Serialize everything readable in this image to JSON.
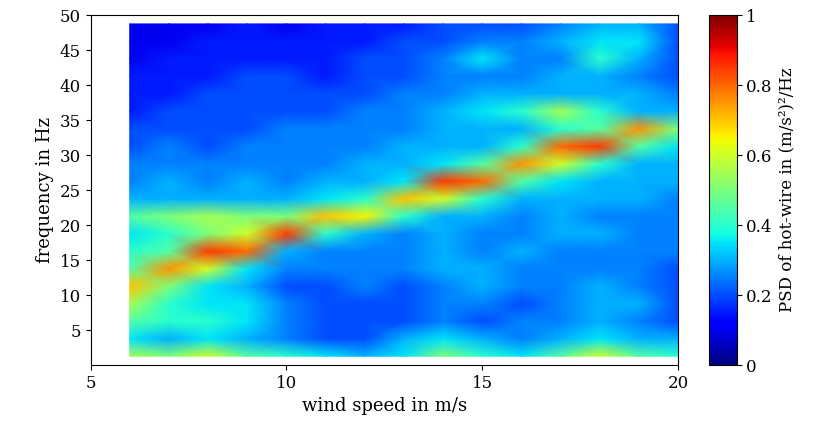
{
  "chart_data": {
    "type": "heatmap",
    "x_label": "wind speed in m/s",
    "y_label": "frequency in Hz",
    "colorbar_label": "PSD of hot-wire in (m/s²)²/Hz",
    "xlim": [
      5,
      20
    ],
    "xticks": [
      5,
      10,
      15,
      20
    ],
    "ylim": [
      0,
      50
    ],
    "yticks": [
      5,
      10,
      15,
      20,
      25,
      30,
      35,
      40,
      45,
      50
    ],
    "x": [
      6,
      7,
      8,
      9,
      10,
      11,
      12,
      13,
      14,
      15,
      16,
      17,
      18,
      19,
      20
    ],
    "y": [
      1.25,
      3.75,
      6.25,
      8.75,
      11.25,
      13.75,
      16.25,
      18.75,
      21.25,
      23.75,
      26.25,
      28.75,
      31.25,
      33.75,
      36.25,
      38.75,
      41.25,
      43.75,
      46.25,
      48.75
    ],
    "cells": [
      [
        0.55,
        0.5,
        0.6,
        0.45,
        0.4,
        0.35,
        0.3,
        0.35,
        0.5,
        0.4,
        0.35,
        0.45,
        0.6,
        0.45,
        0.4
      ],
      [
        0.35,
        0.3,
        0.35,
        0.3,
        0.25,
        0.2,
        0.2,
        0.3,
        0.35,
        0.3,
        0.25,
        0.3,
        0.35,
        0.3,
        0.3
      ],
      [
        0.45,
        0.4,
        0.4,
        0.35,
        0.25,
        0.2,
        0.2,
        0.2,
        0.25,
        0.2,
        0.25,
        0.25,
        0.3,
        0.25,
        0.2
      ],
      [
        0.55,
        0.4,
        0.35,
        0.35,
        0.25,
        0.2,
        0.2,
        0.2,
        0.25,
        0.25,
        0.2,
        0.25,
        0.3,
        0.3,
        0.2
      ],
      [
        0.7,
        0.5,
        0.35,
        0.3,
        0.2,
        0.2,
        0.25,
        0.2,
        0.25,
        0.3,
        0.25,
        0.25,
        0.3,
        0.25,
        0.2
      ],
      [
        0.45,
        0.75,
        0.6,
        0.35,
        0.25,
        0.25,
        0.25,
        0.25,
        0.3,
        0.3,
        0.25,
        0.25,
        0.25,
        0.25,
        0.2
      ],
      [
        0.4,
        0.45,
        0.85,
        0.8,
        0.3,
        0.25,
        0.25,
        0.25,
        0.3,
        0.25,
        0.3,
        0.25,
        0.25,
        0.25,
        0.25
      ],
      [
        0.35,
        0.4,
        0.5,
        0.6,
        0.85,
        0.4,
        0.3,
        0.25,
        0.3,
        0.25,
        0.25,
        0.3,
        0.3,
        0.25,
        0.25
      ],
      [
        0.45,
        0.5,
        0.55,
        0.5,
        0.5,
        0.7,
        0.65,
        0.4,
        0.3,
        0.3,
        0.25,
        0.3,
        0.25,
        0.25,
        0.25
      ],
      [
        0.3,
        0.3,
        0.3,
        0.3,
        0.3,
        0.35,
        0.4,
        0.7,
        0.6,
        0.4,
        0.3,
        0.3,
        0.3,
        0.3,
        0.25
      ],
      [
        0.25,
        0.3,
        0.25,
        0.3,
        0.25,
        0.3,
        0.3,
        0.35,
        0.85,
        0.8,
        0.45,
        0.35,
        0.3,
        0.3,
        0.3
      ],
      [
        0.25,
        0.25,
        0.25,
        0.25,
        0.25,
        0.25,
        0.3,
        0.3,
        0.35,
        0.45,
        0.75,
        0.6,
        0.4,
        0.3,
        0.3
      ],
      [
        0.2,
        0.25,
        0.2,
        0.25,
        0.25,
        0.25,
        0.25,
        0.3,
        0.3,
        0.3,
        0.4,
        0.8,
        0.85,
        0.45,
        0.35
      ],
      [
        0.2,
        0.2,
        0.2,
        0.2,
        0.25,
        0.25,
        0.25,
        0.25,
        0.3,
        0.3,
        0.3,
        0.4,
        0.45,
        0.75,
        0.5
      ],
      [
        0.15,
        0.2,
        0.2,
        0.2,
        0.2,
        0.2,
        0.25,
        0.25,
        0.3,
        0.35,
        0.4,
        0.55,
        0.4,
        0.3,
        0.3
      ],
      [
        0.15,
        0.15,
        0.2,
        0.2,
        0.2,
        0.2,
        0.2,
        0.25,
        0.25,
        0.3,
        0.3,
        0.3,
        0.3,
        0.3,
        0.25
      ],
      [
        0.15,
        0.15,
        0.15,
        0.2,
        0.2,
        0.15,
        0.2,
        0.2,
        0.25,
        0.25,
        0.25,
        0.3,
        0.3,
        0.25,
        0.2
      ],
      [
        0.1,
        0.15,
        0.15,
        0.15,
        0.15,
        0.15,
        0.2,
        0.2,
        0.25,
        0.35,
        0.25,
        0.25,
        0.4,
        0.3,
        0.2
      ],
      [
        0.1,
        0.1,
        0.15,
        0.15,
        0.15,
        0.15,
        0.15,
        0.2,
        0.2,
        0.25,
        0.25,
        0.3,
        0.35,
        0.35,
        0.2
      ],
      [
        0.1,
        0.1,
        0.1,
        0.15,
        0.1,
        0.15,
        0.15,
        0.15,
        0.2,
        0.2,
        0.2,
        0.25,
        0.3,
        0.3,
        0.2
      ]
    ],
    "colorbar_range": [
      0,
      1
    ],
    "colorbar_ticks": [
      0,
      0.2,
      0.4,
      0.6,
      0.8,
      1
    ]
  }
}
